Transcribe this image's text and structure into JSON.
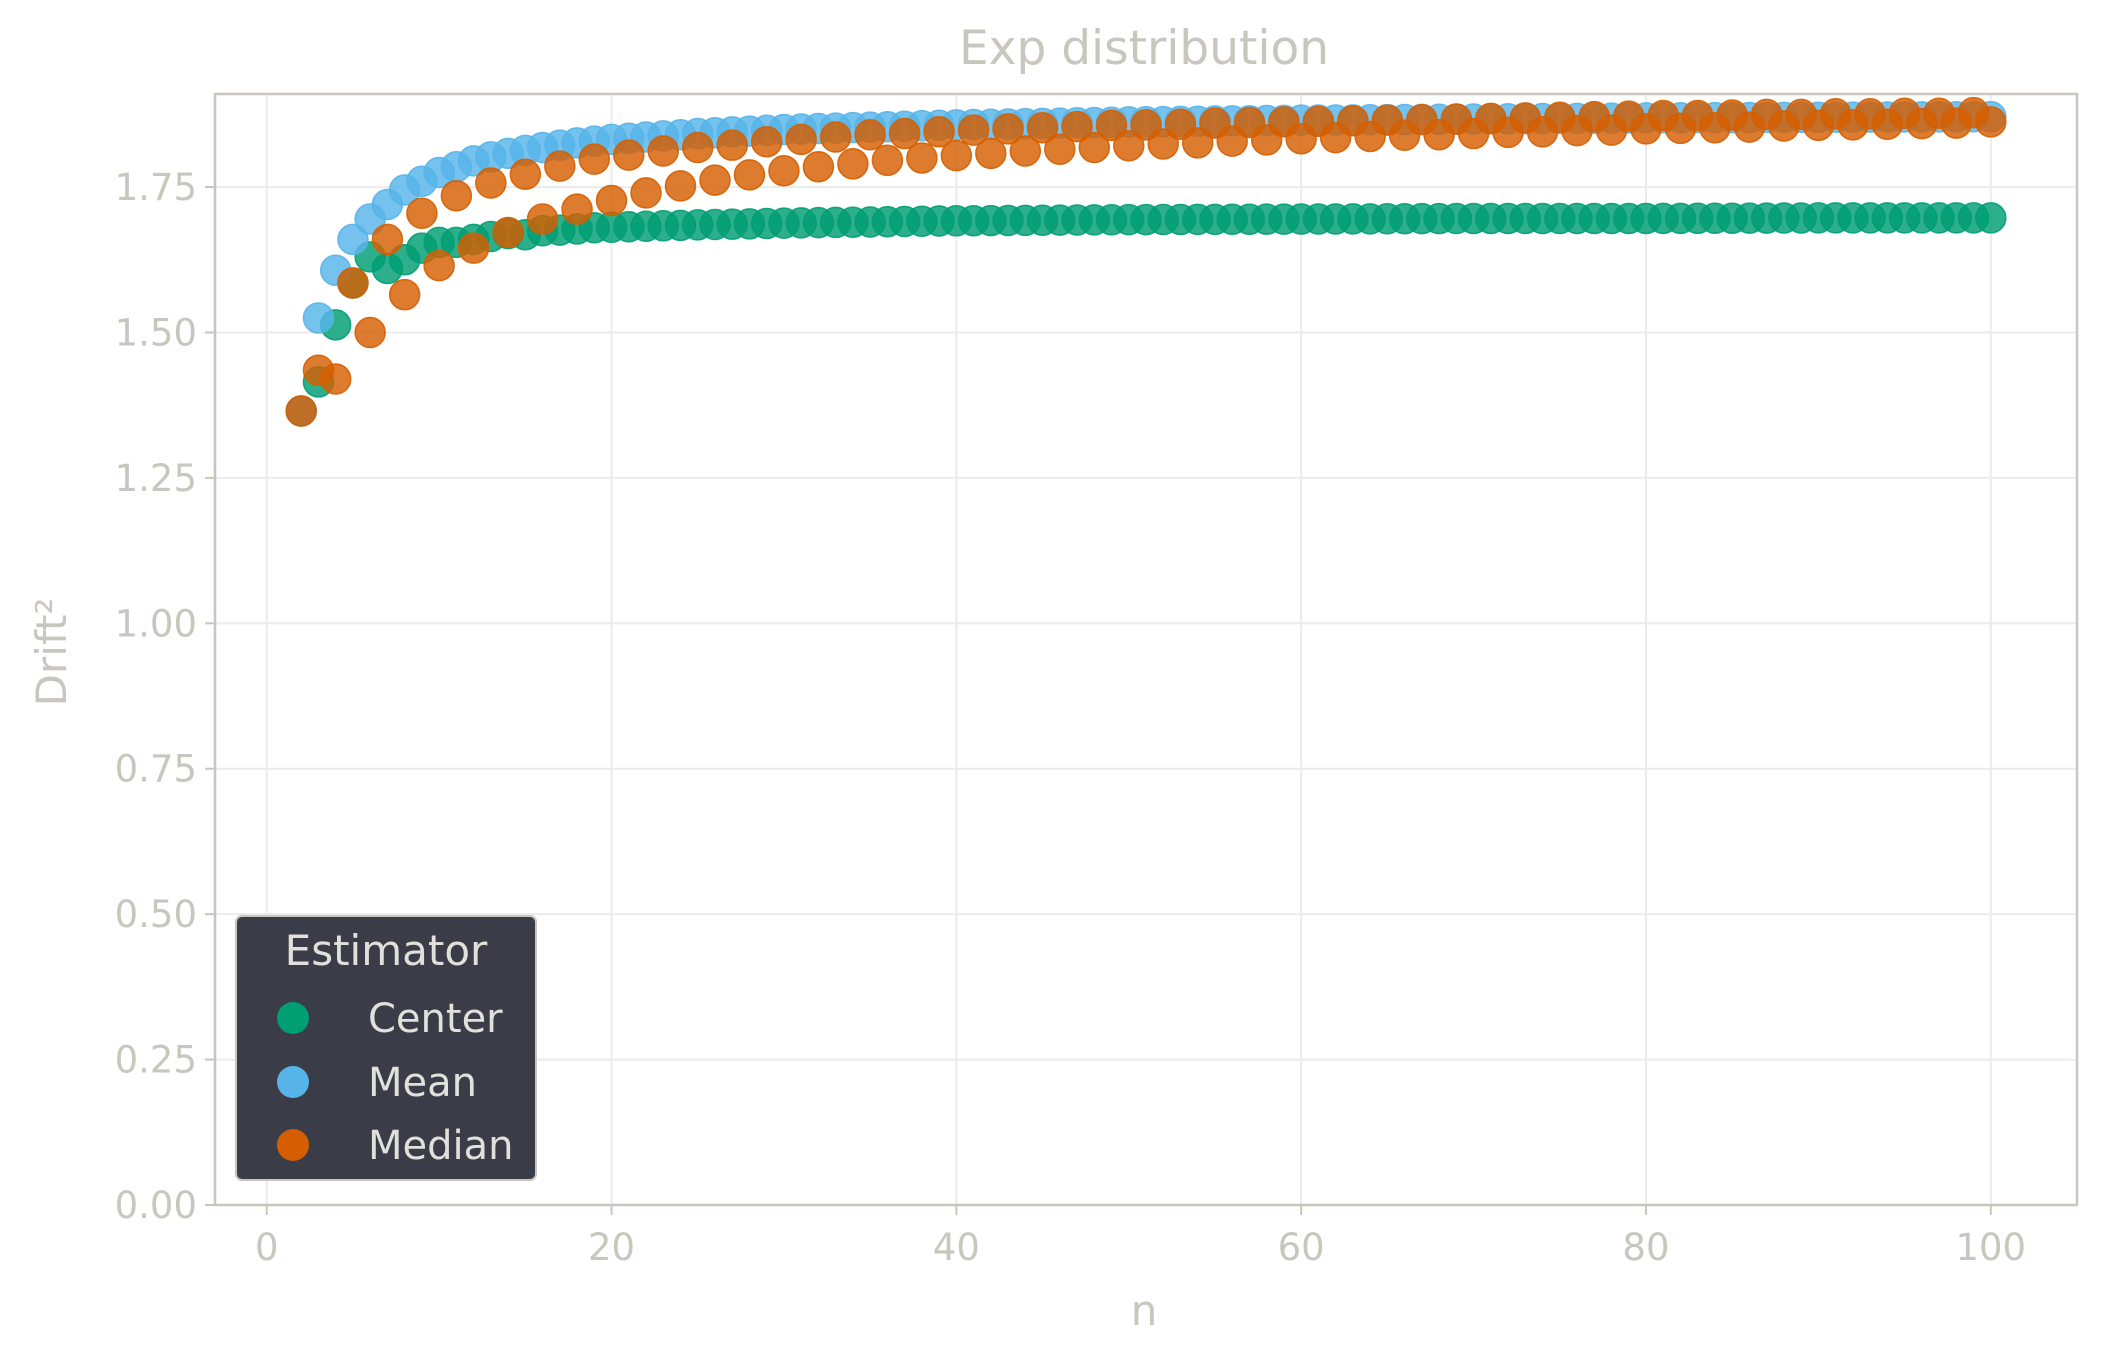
{
  "chart_data": {
    "type": "scatter",
    "title": "Exp distribution",
    "xlabel": "n",
    "ylabel": "Drift²",
    "xlim": [
      -3,
      105
    ],
    "ylim": [
      0,
      1.91
    ],
    "xticks": [
      0,
      20,
      40,
      60,
      80,
      100
    ],
    "yticks": [
      0,
      0.25,
      0.5,
      0.75,
      1.0,
      1.25,
      1.5,
      1.75
    ],
    "xtick_labels": [
      "0",
      "20",
      "40",
      "60",
      "80",
      "100"
    ],
    "ytick_labels": [
      "0.00",
      "0.25",
      "0.50",
      "0.75",
      "1.00",
      "1.25",
      "1.50",
      "1.75"
    ],
    "grid": true,
    "legend": {
      "title": "Estimator",
      "placement": "lower-left"
    },
    "x_range": [
      2,
      100
    ],
    "series": [
      {
        "name": "Center",
        "color": "#009e73",
        "points": [
          [
            2,
            1.365
          ],
          [
            3,
            1.415
          ],
          [
            4,
            1.513
          ],
          [
            5,
            1.585
          ],
          [
            6,
            1.63
          ],
          [
            7,
            1.61
          ],
          [
            8,
            1.625
          ],
          [
            9,
            1.645
          ],
          [
            10,
            1.655
          ],
          [
            11,
            1.655
          ],
          [
            12,
            1.66
          ],
          [
            13,
            1.665
          ],
          [
            14,
            1.67
          ],
          [
            15,
            1.668
          ],
          [
            16,
            1.675
          ],
          [
            17,
            1.676
          ],
          [
            18,
            1.678
          ],
          [
            19,
            1.68
          ],
          [
            20,
            1.681
          ],
          [
            25,
            1.685
          ],
          [
            30,
            1.688
          ],
          [
            40,
            1.692
          ],
          [
            50,
            1.694
          ],
          [
            60,
            1.695
          ],
          [
            70,
            1.696
          ],
          [
            80,
            1.696
          ],
          [
            90,
            1.697
          ],
          [
            100,
            1.697
          ]
        ]
      },
      {
        "name": "Mean",
        "color": "#56b4e9",
        "points": [
          [
            2,
            1.365
          ],
          [
            3,
            1.525
          ],
          [
            4,
            1.607
          ],
          [
            5,
            1.66
          ],
          [
            6,
            1.695
          ],
          [
            7,
            1.72
          ],
          [
            8,
            1.745
          ],
          [
            9,
            1.76
          ],
          [
            10,
            1.775
          ],
          [
            11,
            1.785
          ],
          [
            12,
            1.795
          ],
          [
            13,
            1.802
          ],
          [
            14,
            1.808
          ],
          [
            15,
            1.813
          ],
          [
            16,
            1.818
          ],
          [
            17,
            1.822
          ],
          [
            18,
            1.826
          ],
          [
            19,
            1.829
          ],
          [
            20,
            1.832
          ],
          [
            25,
            1.842
          ],
          [
            30,
            1.849
          ],
          [
            40,
            1.857
          ],
          [
            50,
            1.862
          ],
          [
            60,
            1.865
          ],
          [
            70,
            1.867
          ],
          [
            80,
            1.869
          ],
          [
            90,
            1.87
          ],
          [
            100,
            1.871
          ]
        ]
      },
      {
        "name": "Median",
        "color": "#d55e00",
        "points": [
          [
            2,
            1.365
          ],
          [
            3,
            1.435
          ],
          [
            4,
            1.42
          ],
          [
            5,
            1.585
          ],
          [
            6,
            1.5
          ],
          [
            7,
            1.66
          ],
          [
            8,
            1.565
          ],
          [
            9,
            1.705
          ],
          [
            10,
            1.615
          ],
          [
            11,
            1.735
          ],
          [
            12,
            1.645
          ],
          [
            13,
            1.757
          ],
          [
            14,
            1.672
          ],
          [
            15,
            1.772
          ],
          [
            16,
            1.695
          ],
          [
            17,
            1.786
          ],
          [
            18,
            1.712
          ],
          [
            19,
            1.798
          ],
          [
            20,
            1.727
          ],
          [
            21,
            1.805
          ],
          [
            22,
            1.74
          ],
          [
            23,
            1.812
          ],
          [
            24,
            1.752
          ],
          [
            25,
            1.818
          ],
          [
            26,
            1.762
          ],
          [
            27,
            1.822
          ],
          [
            28,
            1.771
          ],
          [
            29,
            1.828
          ],
          [
            30,
            1.778
          ],
          [
            31,
            1.832
          ],
          [
            32,
            1.785
          ],
          [
            33,
            1.836
          ],
          [
            34,
            1.79
          ],
          [
            35,
            1.84
          ],
          [
            36,
            1.796
          ],
          [
            37,
            1.842
          ],
          [
            38,
            1.8
          ],
          [
            39,
            1.845
          ],
          [
            40,
            1.804
          ],
          [
            41,
            1.848
          ],
          [
            42,
            1.808
          ],
          [
            43,
            1.85
          ],
          [
            44,
            1.812
          ],
          [
            45,
            1.852
          ],
          [
            46,
            1.815
          ],
          [
            47,
            1.854
          ],
          [
            48,
            1.818
          ],
          [
            49,
            1.856
          ],
          [
            50,
            1.821
          ],
          [
            51,
            1.857
          ],
          [
            52,
            1.824
          ],
          [
            53,
            1.858
          ],
          [
            54,
            1.826
          ],
          [
            55,
            1.86
          ],
          [
            56,
            1.829
          ],
          [
            57,
            1.861
          ],
          [
            58,
            1.831
          ],
          [
            59,
            1.862
          ],
          [
            60,
            1.833
          ],
          [
            61,
            1.863
          ],
          [
            62,
            1.835
          ],
          [
            63,
            1.864
          ],
          [
            64,
            1.837
          ],
          [
            65,
            1.865
          ],
          [
            66,
            1.839
          ],
          [
            67,
            1.866
          ],
          [
            68,
            1.84
          ],
          [
            69,
            1.867
          ],
          [
            70,
            1.842
          ],
          [
            71,
            1.868
          ],
          [
            72,
            1.844
          ],
          [
            73,
            1.869
          ],
          [
            74,
            1.845
          ],
          [
            75,
            1.87
          ],
          [
            76,
            1.847
          ],
          [
            77,
            1.871
          ],
          [
            78,
            1.848
          ],
          [
            79,
            1.872
          ],
          [
            80,
            1.85
          ],
          [
            81,
            1.873
          ],
          [
            82,
            1.851
          ],
          [
            83,
            1.873
          ],
          [
            84,
            1.852
          ],
          [
            85,
            1.874
          ],
          [
            86,
            1.853
          ],
          [
            87,
            1.875
          ],
          [
            88,
            1.855
          ],
          [
            89,
            1.875
          ],
          [
            90,
            1.856
          ],
          [
            91,
            1.876
          ],
          [
            92,
            1.857
          ],
          [
            93,
            1.876
          ],
          [
            94,
            1.858
          ],
          [
            95,
            1.877
          ],
          [
            96,
            1.859
          ],
          [
            97,
            1.877
          ],
          [
            98,
            1.86
          ],
          [
            99,
            1.878
          ],
          [
            100,
            1.862
          ]
        ]
      }
    ]
  }
}
